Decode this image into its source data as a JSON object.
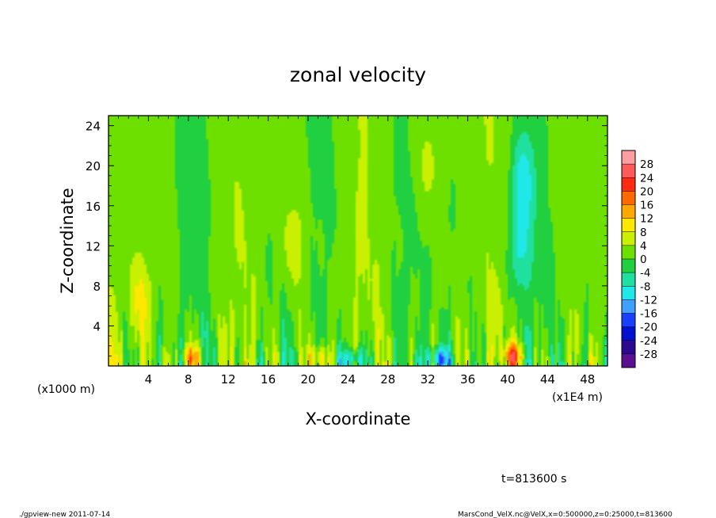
{
  "chart_data": {
    "type": "heatmap",
    "title": "zonal velocity",
    "xlabel": "X-coordinate",
    "ylabel": "Z-coordinate",
    "x_unit_left": "(x1000 m)",
    "x_unit_right": "(x1E4 m)",
    "x_ticks": [
      "4",
      "8",
      "12",
      "16",
      "20",
      "24",
      "28",
      "32",
      "36",
      "40",
      "44",
      "48"
    ],
    "x_tick_values": [
      4,
      8,
      12,
      16,
      20,
      24,
      28,
      32,
      36,
      40,
      44,
      48
    ],
    "y_ticks": [
      "4",
      "8",
      "12",
      "16",
      "20",
      "24"
    ],
    "y_tick_values": [
      4,
      8,
      12,
      16,
      20,
      24
    ],
    "xlim": [
      0,
      50
    ],
    "ylim": [
      0,
      25
    ],
    "colorbar": {
      "labels": [
        "28",
        "24",
        "20",
        "16",
        "12",
        "8",
        "4",
        "0",
        "-4",
        "-8",
        "-12",
        "-16",
        "-20",
        "-24",
        "-28"
      ],
      "levels": [
        28,
        24,
        20,
        16,
        12,
        8,
        4,
        0,
        -4,
        -8,
        -12,
        -16,
        -20,
        -24,
        -28
      ],
      "colors": [
        "#ff9e9e",
        "#ff5a5a",
        "#ff2a10",
        "#ff6a00",
        "#ffaa00",
        "#ffe800",
        "#c8f000",
        "#6ee000",
        "#20d040",
        "#20e0a0",
        "#20e8e8",
        "#40a0ff",
        "#1a40ff",
        "#0010d0",
        "#2a0890",
        "#5a1090"
      ]
    },
    "features": [
      {
        "x": 40.5,
        "z": 1.0,
        "value": 22
      },
      {
        "x": 8.3,
        "z": 0.8,
        "value": 16
      },
      {
        "x": 21.0,
        "z": 0.8,
        "value": 14
      },
      {
        "x": 33.0,
        "z": 0.6,
        "value": -22
      },
      {
        "x": 24.5,
        "z": 0.6,
        "value": -20
      },
      {
        "x": 41.5,
        "z": 18.5,
        "value": -14
      },
      {
        "x": 41.2,
        "z": 11.5,
        "value": -12
      },
      {
        "x": 3.3,
        "z": 6.5,
        "value": 10
      },
      {
        "x": 18.5,
        "z": 12.5,
        "value": 8
      },
      {
        "x": 32.0,
        "z": 20.0,
        "value": 6
      }
    ]
  },
  "time_label": "t=813600 s",
  "footer_left": "./gpview-new  2011-07-14",
  "footer_right": "MarsCond_VelX.nc@VelX,x=0:500000,z=0:25000,t=813600"
}
